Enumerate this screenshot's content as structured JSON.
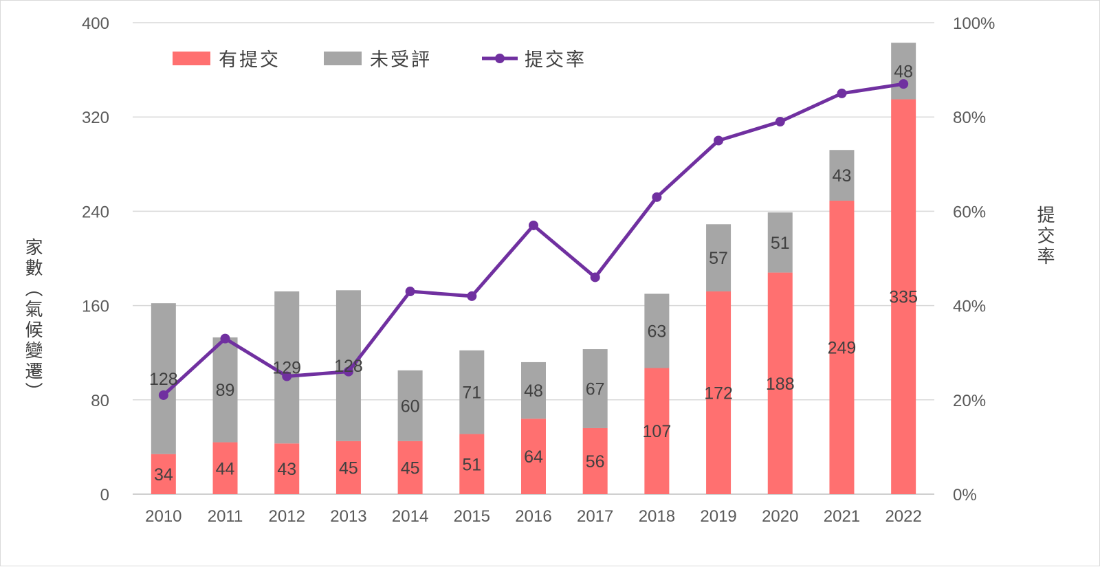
{
  "chart_data": {
    "type": "bar+line",
    "categories": [
      "2010",
      "2011",
      "2012",
      "2013",
      "2014",
      "2015",
      "2016",
      "2017",
      "2018",
      "2019",
      "2020",
      "2021",
      "2022"
    ],
    "series": [
      {
        "name": "有提交",
        "type": "stacked-bar",
        "axis": "left",
        "color": "#FF7070",
        "values": [
          34,
          44,
          43,
          45,
          45,
          51,
          64,
          56,
          107,
          172,
          188,
          249,
          335
        ]
      },
      {
        "name": "未受評",
        "type": "stacked-bar",
        "axis": "left",
        "color": "#A6A6A6",
        "values": [
          128,
          89,
          129,
          128,
          60,
          71,
          48,
          67,
          63,
          57,
          51,
          43,
          48
        ]
      },
      {
        "name": "提交率",
        "type": "line",
        "axis": "right",
        "color": "#7030A0",
        "values": [
          0.21,
          0.33,
          0.25,
          0.26,
          0.43,
          0.42,
          0.57,
          0.46,
          0.63,
          0.75,
          0.79,
          0.85,
          0.87
        ]
      }
    ],
    "ylabel": "家數（氣候變遷）",
    "y2label": "提交率",
    "ylim": [
      0,
      400
    ],
    "yticks": [
      "0",
      "80",
      "160",
      "240",
      "320",
      "400"
    ],
    "y2lim": [
      0,
      1
    ],
    "y2ticks": [
      "0%",
      "20%",
      "40%",
      "60%",
      "80%",
      "100%"
    ],
    "grid": true,
    "legend": "top-left"
  }
}
